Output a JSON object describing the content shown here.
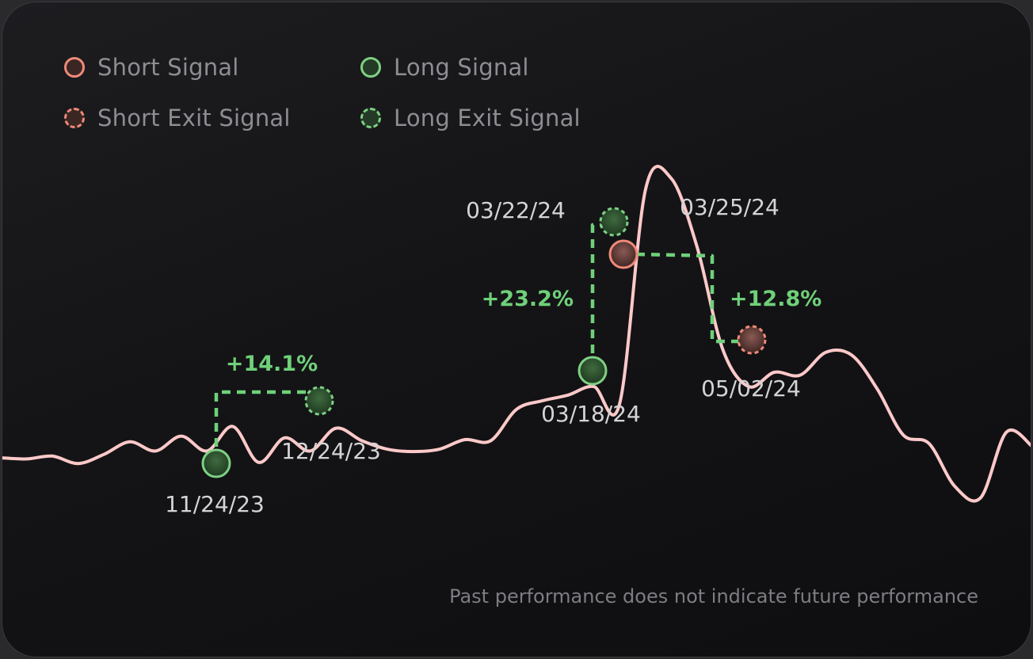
{
  "legend": {
    "short_signal": "Short Signal",
    "long_signal": "Long Signal",
    "short_exit_signal": "Short Exit Signal",
    "long_exit_signal": "Long Exit Signal"
  },
  "colors": {
    "price_line": "#ffc9c9",
    "short": "#f08a7a",
    "long": "#7ed184",
    "trade_connector": "#6fd07a",
    "date_label": "#d4d4d6"
  },
  "disclaimer": "Past performance does not indicate future performance",
  "chart_data": {
    "type": "line",
    "series": [
      {
        "values": [
          0.0,
          -0.02,
          0.03,
          -0.1,
          0.06,
          0.28,
          0.12,
          0.38,
          0.12,
          0.55,
          -0.08,
          0.35,
          0.12,
          0.52,
          0.3,
          0.15,
          0.11,
          0.15,
          0.32,
          0.3,
          0.85,
          1.0,
          1.1,
          1.25,
          0.95,
          4.7,
          4.9,
          3.7,
          1.9,
          1.25,
          1.5,
          1.45,
          1.85,
          1.8,
          1.2,
          0.4,
          0.25,
          -0.5,
          -0.7,
          0.45,
          0.2
        ]
      }
    ],
    "signals": [
      {
        "type": "long",
        "date": "11/24/23"
      },
      {
        "type": "long-exit",
        "date": "12/24/23",
        "return": "+14.1%"
      },
      {
        "type": "long",
        "date": "03/18/24"
      },
      {
        "type": "long-exit",
        "date": "03/22/24",
        "return": "+23.2%"
      },
      {
        "type": "short",
        "date": "03/25/24"
      },
      {
        "type": "short-exit",
        "date": "05/02/24",
        "return": "+12.8%"
      }
    ],
    "legend_position": "top-left",
    "grid": false
  }
}
